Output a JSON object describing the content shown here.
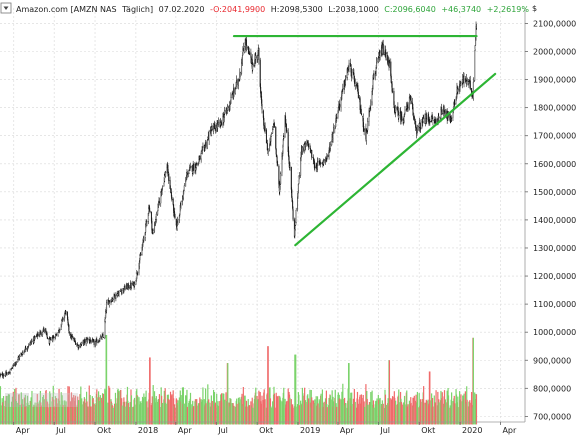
{
  "chart_data": {
    "type": "candlestick",
    "header": {
      "symbol": "Amazon.com [AMZN NAS",
      "interval": "Täglich]",
      "date": "07.02.2020",
      "open": "-O:2041,9900",
      "high": "H:2098,5300",
      "low": "L:2038,1000",
      "close": "C:2096,6040",
      "change": "+46,3740",
      "change_pct": "+2,2619%"
    },
    "currency_label": "$",
    "y_ticks": [
      {
        "value": 2100,
        "label": "2100,0000"
      },
      {
        "value": 2000,
        "label": "2000,0000"
      },
      {
        "value": 1900,
        "label": "1900,0000"
      },
      {
        "value": 1800,
        "label": "1800,0000"
      },
      {
        "value": 1700,
        "label": "1700,0000"
      },
      {
        "value": 1600,
        "label": "1600,0000"
      },
      {
        "value": 1500,
        "label": "1500,0000"
      },
      {
        "value": 1400,
        "label": "1400,0000"
      },
      {
        "value": 1300,
        "label": "1300,0000"
      },
      {
        "value": 1200,
        "label": "1200,0000"
      },
      {
        "value": 1100,
        "label": "1100,0000"
      },
      {
        "value": 1000,
        "label": "1000,0000"
      },
      {
        "value": 900,
        "label": "900,0000"
      },
      {
        "value": 800,
        "label": "800,0000"
      },
      {
        "value": 700,
        "label": "700,0000"
      }
    ],
    "y_range": [
      680,
      2155
    ],
    "x_range": [
      "2017-03-01",
      "2020-05-15"
    ],
    "x_ticks": [
      {
        "date": "2017-04-01",
        "label": "Apr"
      },
      {
        "date": "2017-07-01",
        "label": "Jul"
      },
      {
        "date": "2017-10-01",
        "label": "Okt"
      },
      {
        "date": "2018-01-01",
        "label": "2018"
      },
      {
        "date": "2018-04-01",
        "label": "Apr"
      },
      {
        "date": "2018-07-01",
        "label": "Jul"
      },
      {
        "date": "2018-10-01",
        "label": "Okt"
      },
      {
        "date": "2019-01-01",
        "label": "2019"
      },
      {
        "date": "2019-04-01",
        "label": "Apr"
      },
      {
        "date": "2019-07-01",
        "label": "Jul"
      },
      {
        "date": "2019-10-01",
        "label": "Okt"
      },
      {
        "date": "2020-01-01",
        "label": "2020"
      },
      {
        "date": "2020-04-01",
        "label": "Apr"
      }
    ],
    "price_path": [
      [
        "2017-03-01",
        845
      ],
      [
        "2017-03-20",
        852
      ],
      [
        "2017-04-10",
        905
      ],
      [
        "2017-05-01",
        948
      ],
      [
        "2017-05-25",
        990
      ],
      [
        "2017-06-08",
        1010
      ],
      [
        "2017-06-20",
        965
      ],
      [
        "2017-07-10",
        1000
      ],
      [
        "2017-07-27",
        1075
      ],
      [
        "2017-08-05",
        990
      ],
      [
        "2017-08-25",
        950
      ],
      [
        "2017-09-15",
        975
      ],
      [
        "2017-09-29",
        960
      ],
      [
        "2017-10-20",
        985
      ],
      [
        "2017-10-27",
        1100
      ],
      [
        "2017-11-15",
        1130
      ],
      [
        "2017-12-10",
        1160
      ],
      [
        "2017-12-29",
        1170
      ],
      [
        "2018-01-15",
        1300
      ],
      [
        "2018-01-31",
        1450
      ],
      [
        "2018-02-08",
        1350
      ],
      [
        "2018-02-28",
        1510
      ],
      [
        "2018-03-12",
        1590
      ],
      [
        "2018-04-02",
        1370
      ],
      [
        "2018-04-27",
        1570
      ],
      [
        "2018-05-20",
        1600
      ],
      [
        "2018-06-20",
        1720
      ],
      [
        "2018-07-10",
        1740
      ],
      [
        "2018-07-30",
        1810
      ],
      [
        "2018-08-20",
        1900
      ],
      [
        "2018-09-04",
        2040
      ],
      [
        "2018-09-20",
        1950
      ],
      [
        "2018-10-04",
        2000
      ],
      [
        "2018-10-12",
        1780
      ],
      [
        "2018-10-26",
        1640
      ],
      [
        "2018-11-08",
        1750
      ],
      [
        "2018-11-20",
        1500
      ],
      [
        "2018-12-03",
        1770
      ],
      [
        "2018-12-14",
        1580
      ],
      [
        "2018-12-24",
        1340
      ],
      [
        "2019-01-08",
        1650
      ],
      [
        "2019-01-25",
        1670
      ],
      [
        "2019-02-08",
        1590
      ],
      [
        "2019-03-08",
        1620
      ],
      [
        "2019-04-01",
        1790
      ],
      [
        "2019-04-26",
        1950
      ],
      [
        "2019-05-15",
        1860
      ],
      [
        "2019-06-03",
        1690
      ],
      [
        "2019-06-20",
        1910
      ],
      [
        "2019-07-10",
        2010
      ],
      [
        "2019-07-25",
        1960
      ],
      [
        "2019-08-05",
        1800
      ],
      [
        "2019-08-25",
        1760
      ],
      [
        "2019-09-10",
        1830
      ],
      [
        "2019-09-25",
        1720
      ],
      [
        "2019-10-15",
        1760
      ],
      [
        "2019-10-25",
        1760
      ],
      [
        "2019-11-10",
        1750
      ],
      [
        "2019-11-25",
        1800
      ],
      [
        "2019-12-10",
        1750
      ],
      [
        "2019-12-27",
        1870
      ],
      [
        "2020-01-10",
        1900
      ],
      [
        "2020-01-20",
        1890
      ],
      [
        "2020-01-30",
        1850
      ],
      [
        "2020-02-03",
        2010
      ],
      [
        "2020-02-07",
        2096
      ]
    ],
    "trendlines": [
      {
        "name": "resistance",
        "color": "#2db534",
        "start": [
          "2018-08-10",
          2055
        ],
        "end": [
          "2020-02-07",
          2055
        ]
      },
      {
        "name": "support",
        "color": "#2db534",
        "start": [
          "2018-12-26",
          1310
        ],
        "end": [
          "2020-03-20",
          1920
        ]
      }
    ],
    "volume": {
      "baseline": 700,
      "up_color": "#7bd36b",
      "down_color": "#f06a6a",
      "spikes": [
        [
          "2017-10-27",
          990
        ],
        [
          "2018-02-02",
          910
        ],
        [
          "2018-07-27",
          890
        ],
        [
          "2018-10-26",
          950
        ],
        [
          "2018-12-26",
          920
        ],
        [
          "2019-04-26",
          890
        ],
        [
          "2019-07-26",
          900
        ],
        [
          "2019-10-25",
          860
        ],
        [
          "2020-01-31",
          980
        ]
      ],
      "typical_range": [
        730,
        820
      ]
    },
    "colors": {
      "candle": "#1a1a1a",
      "grid": "#d8d8d8",
      "header_red": "#e8262d",
      "header_green": "#2ea43a"
    }
  }
}
